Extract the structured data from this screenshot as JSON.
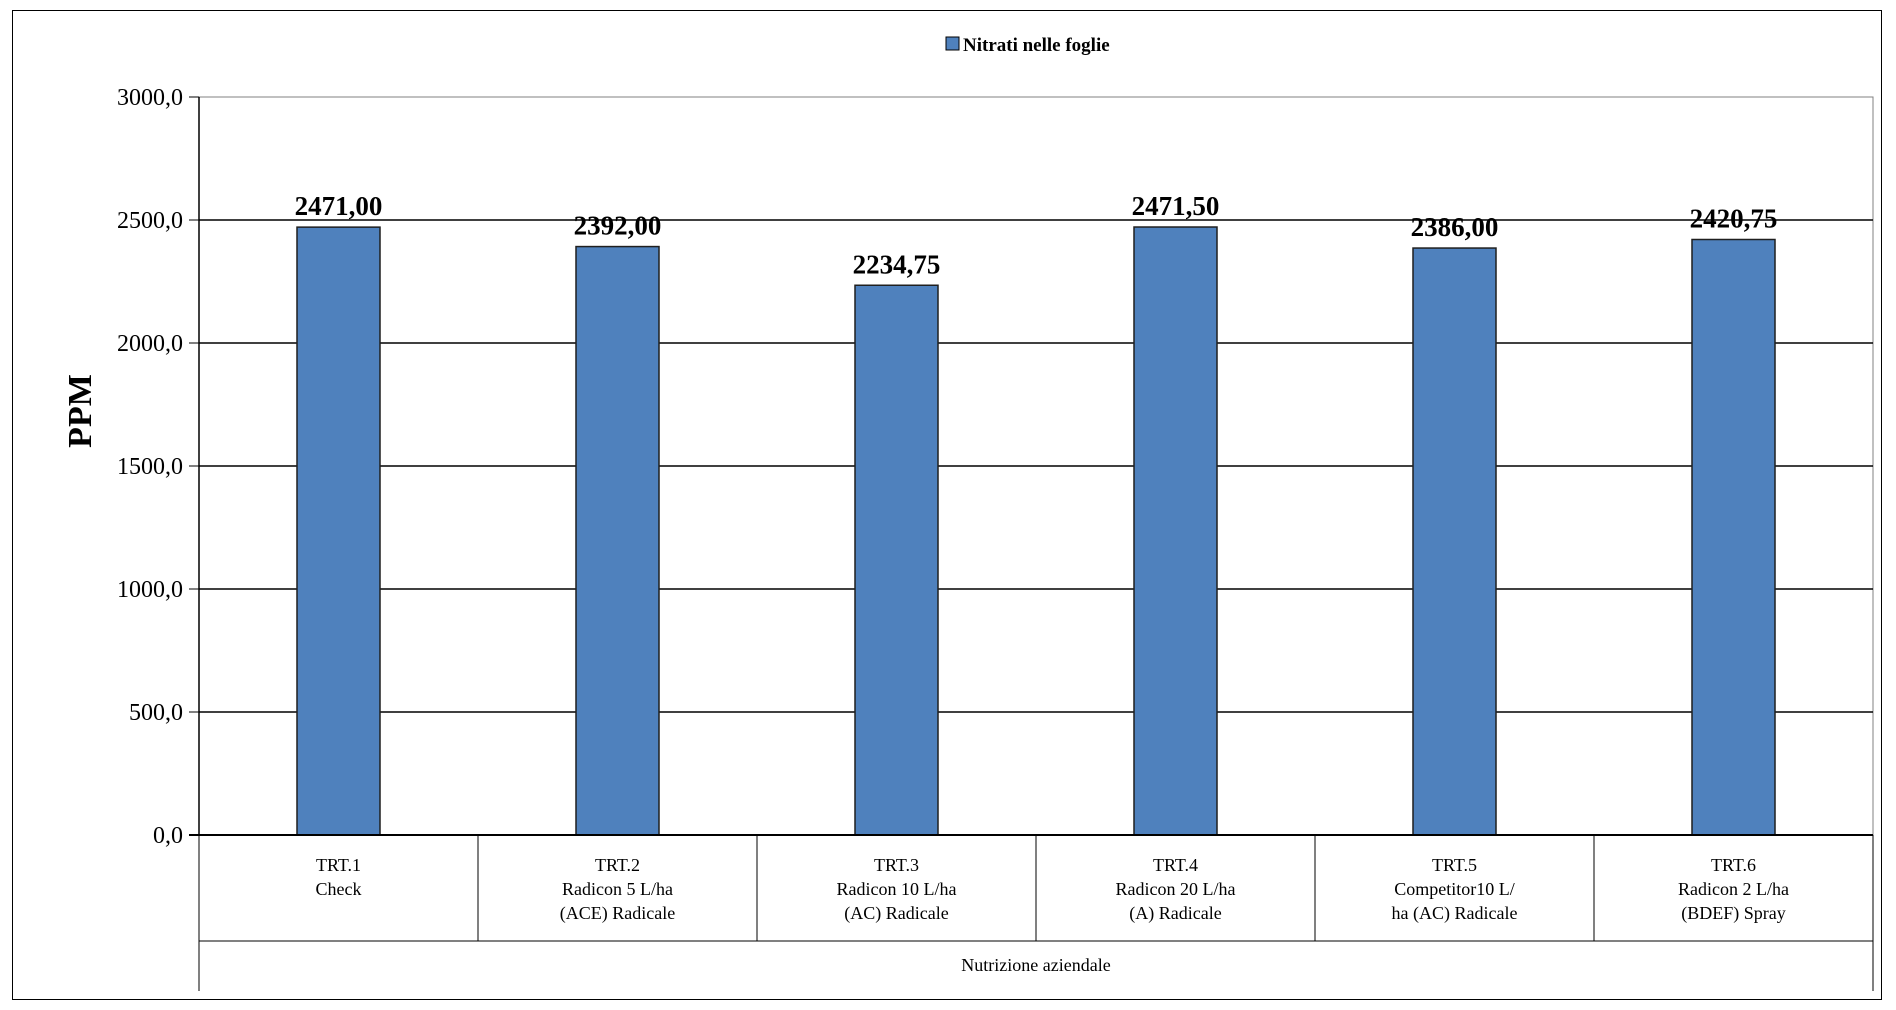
{
  "chart_data": {
    "type": "bar",
    "series": [
      {
        "name": "Nitrati nelle foglie",
        "color": "#4F81BD",
        "values": [
          2471.0,
          2392.0,
          2234.75,
          2471.5,
          2386.0,
          2420.75
        ],
        "value_labels": [
          "2471,00",
          "2392,00",
          "2234,75",
          "2471,50",
          "2386,00",
          "2420,75"
        ]
      }
    ],
    "categories": [
      [
        "TRT.1",
        "Check"
      ],
      [
        "TRT.2",
        "Radicon 5 L/ha",
        "(ACE) Radicale"
      ],
      [
        "TRT.3",
        "Radicon 10 L/ha",
        "(AC) Radicale"
      ],
      [
        "TRT.4",
        "Radicon 20 L/ha",
        "(A) Radicale"
      ],
      [
        "TRT.5",
        "Competitor10 L/",
        "ha (AC) Radicale"
      ],
      [
        "TRT.6",
        "Radicon 2 L/ha",
        "(BDEF) Spray"
      ]
    ],
    "category_group": "Nutrizione aziendale",
    "ylabel": "PPM",
    "ylim": [
      0,
      3000
    ],
    "yticks": [
      0,
      500,
      1000,
      1500,
      2000,
      2500,
      3000
    ],
    "ytick_labels": [
      "0,0",
      "500,0",
      "1000,0",
      "1500,0",
      "2000,0",
      "2500,0",
      "3000,0"
    ],
    "grid": true,
    "legend_position": "top-center"
  }
}
